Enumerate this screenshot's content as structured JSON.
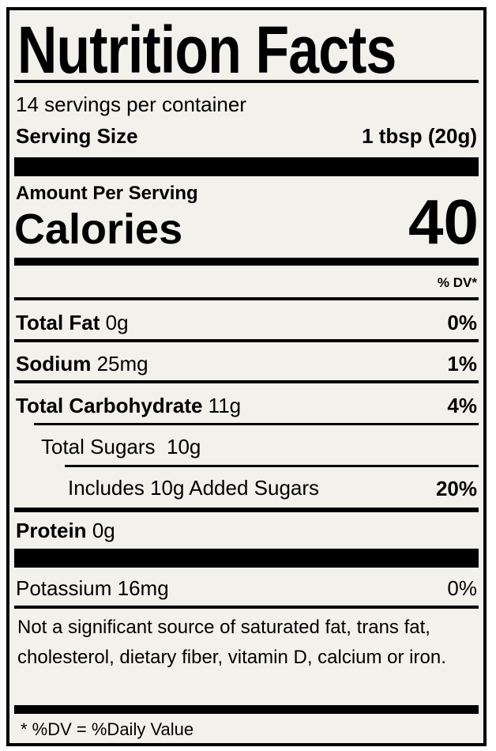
{
  "title": "Nutrition Facts",
  "servings_per_container": "14 servings per container",
  "serving_size": {
    "label": "Serving Size",
    "value": "1 tbsp (20g)"
  },
  "amount_per_serving": "Amount Per Serving",
  "calories": {
    "label": "Calories",
    "value": "40"
  },
  "dv_header": "% DV*",
  "nutrients": [
    {
      "label": "Total Fat",
      "amount": "0g",
      "dv": "0%"
    },
    {
      "label": "Sodium",
      "amount": "25mg",
      "dv": "1%"
    },
    {
      "label": "Total Carbohydrate",
      "amount": "11g",
      "dv": "4%"
    },
    {
      "label": "Total Sugars",
      "amount": "10g",
      "dv": ""
    },
    {
      "label": "Includes 10g Added Sugars",
      "amount": "",
      "dv": "20%"
    },
    {
      "label": "Protein",
      "amount": "0g",
      "dv": ""
    },
    {
      "label": "Potassium",
      "amount": "16mg",
      "dv": "0%"
    }
  ],
  "note": "Not a significant source of saturated fat, trans fat, cholesterol, dietary fiber, vitamin D, calcium or iron.",
  "footnote": "* %DV = %Daily Value",
  "colors": {
    "background": "#f2f1ec",
    "ink": "#000000"
  }
}
